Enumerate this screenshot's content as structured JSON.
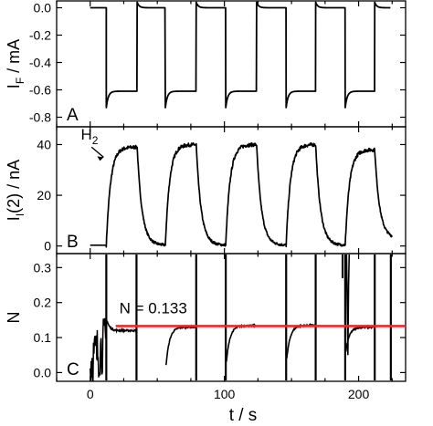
{
  "chart_data": {
    "type": "line",
    "x_axis": {
      "label": "t / s",
      "range": [
        -25,
        235
      ],
      "ticks": [
        0,
        100,
        200
      ],
      "tick_labels": [
        "0",
        "100",
        "200"
      ]
    },
    "panels": [
      {
        "id": "A",
        "panel_label": "A",
        "ylabel": "I_F / mA",
        "ylabel_main": "I",
        "ylabel_sub": "F",
        "ylabel_rest": " / mA",
        "ylim": [
          -0.87,
          0.05
        ],
        "yticks": [
          0.0,
          -0.2,
          -0.4,
          -0.6,
          -0.8
        ],
        "ytick_labels": [
          "0.0",
          "-0.2",
          "-0.4",
          "-0.6",
          "-0.8"
        ],
        "cycles": {
          "step_times": [
            12,
            35,
            56,
            79,
            101,
            124,
            146,
            168,
            190,
            212,
            224
          ],
          "high_value": 0.0,
          "high_peak": 0.04,
          "low_value": -0.61,
          "low_peak": -0.73
        }
      },
      {
        "id": "B",
        "panel_label": "B",
        "ylabel": "I_I(2) / nA",
        "ylabel_main": "I",
        "ylabel_sub": "I",
        "ylabel_rest": "(2) / nA",
        "ylim": [
          -3,
          47
        ],
        "yticks": [
          0,
          20,
          40
        ],
        "ytick_labels": [
          "0",
          "20",
          "40"
        ],
        "annotation": "H₂",
        "annotation_main": "H",
        "annotation_sub": "2",
        "pulses": [
          {
            "on": 12,
            "off": 35,
            "peak": 39
          },
          {
            "on": 56,
            "off": 79,
            "peak": 40
          },
          {
            "on": 101,
            "off": 124,
            "peak": 40
          },
          {
            "on": 146,
            "off": 168,
            "peak": 40
          },
          {
            "on": 190,
            "off": 212,
            "peak": 38
          }
        ],
        "baseline": 0.3,
        "end_value": 3
      },
      {
        "id": "C",
        "panel_label": "C",
        "ylabel": "N",
        "ylim": [
          -0.025,
          0.34
        ],
        "yticks": [
          0.0,
          0.1,
          0.2,
          0.3
        ],
        "ytick_labels": [
          "0.0",
          "0.1",
          "0.2",
          "0.3"
        ],
        "reference_line": {
          "value": 0.133,
          "label": "N = 0.133",
          "color": "#e8292f",
          "x_start": 19
        },
        "spikes": [
          12,
          34.5,
          79,
          101,
          146,
          168,
          190,
          212,
          224
        ],
        "recovery_segments": [
          {
            "t0": 56.5,
            "t1": 79,
            "start": 0.02,
            "end": 0.13
          },
          {
            "t0": 101.5,
            "t1": 124,
            "start": 0.03,
            "end": 0.134
          },
          {
            "t0": 146.5,
            "t1": 168,
            "start": 0.04,
            "end": 0.135
          },
          {
            "t0": 190.5,
            "t1": 212,
            "start": 0.06,
            "end": 0.13
          }
        ]
      }
    ],
    "line_color": "#000000"
  }
}
